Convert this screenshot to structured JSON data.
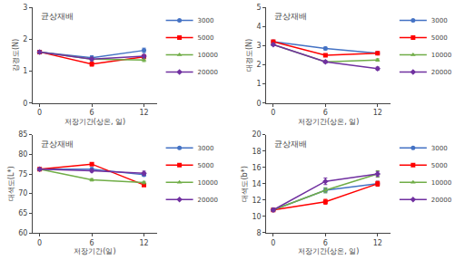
{
  "chart_data": [
    {
      "type": "line",
      "title": "균상재배",
      "xlabel": "저장기간(상온, 일)",
      "ylabel": "강경도(N)",
      "x": [
        0,
        6,
        12
      ],
      "xlim": [
        -0.8,
        13.5
      ],
      "xticks": [
        0,
        6,
        12
      ],
      "ylim": [
        0,
        3
      ],
      "yticks": [
        0,
        1,
        2,
        3
      ],
      "grid": false,
      "legend": "upper right",
      "series": [
        {
          "name": "3000",
          "color": "#4472c4",
          "marker": "circle",
          "values": [
            1.6,
            1.42,
            1.65
          ],
          "errors": [
            0.04,
            0.06,
            0.07
          ]
        },
        {
          "name": "5000",
          "color": "#ff0000",
          "marker": "square",
          "values": [
            1.6,
            1.22,
            1.45
          ],
          "errors": [
            0.04,
            0.06,
            0.05
          ]
        },
        {
          "name": "10000",
          "color": "#70ad47",
          "marker": "triangle-up",
          "values": [
            1.6,
            1.38,
            1.35
          ],
          "errors": [
            0.04,
            0.05,
            0.05
          ]
        },
        {
          "name": "20000",
          "color": "#7030a0",
          "marker": "diamond",
          "values": [
            1.6,
            1.38,
            1.47
          ],
          "errors": [
            0.04,
            0.05,
            0.05
          ]
        }
      ]
    },
    {
      "type": "line",
      "title": "균상재배",
      "xlabel": "저장기간(상온, 일)",
      "ylabel": "대경도(N)",
      "x": [
        0,
        6,
        12
      ],
      "xlim": [
        -0.8,
        13.5
      ],
      "xticks": [
        0,
        6,
        12
      ],
      "ylim": [
        0,
        5
      ],
      "yticks": [
        0,
        1,
        2,
        3,
        4,
        5
      ],
      "grid": false,
      "legend": "upper right",
      "series": [
        {
          "name": "3000",
          "color": "#4472c4",
          "marker": "circle",
          "values": [
            3.2,
            2.85,
            2.6
          ],
          "errors": [
            0.06,
            0.07,
            0.06
          ]
        },
        {
          "name": "5000",
          "color": "#ff0000",
          "marker": "square",
          "values": [
            3.2,
            2.5,
            2.6
          ],
          "errors": [
            0.06,
            0.06,
            0.06
          ]
        },
        {
          "name": "10000",
          "color": "#70ad47",
          "marker": "triangle-up",
          "values": [
            3.05,
            2.15,
            2.25
          ],
          "errors": [
            0.06,
            0.06,
            0.06
          ]
        },
        {
          "name": "20000",
          "color": "#7030a0",
          "marker": "diamond",
          "values": [
            3.05,
            2.15,
            1.8
          ],
          "errors": [
            0.06,
            0.06,
            0.08
          ]
        }
      ]
    },
    {
      "type": "line",
      "title": "균상재배",
      "xlabel": "저장기간(일)",
      "ylabel": "대색도(L*)",
      "x": [
        0,
        6,
        12
      ],
      "xlim": [
        -0.8,
        13.5
      ],
      "xticks": [
        0,
        6,
        12
      ],
      "ylim": [
        60,
        85
      ],
      "yticks": [
        60,
        65,
        70,
        75,
        80,
        85
      ],
      "grid": false,
      "legend": "upper right",
      "series": [
        {
          "name": "3000",
          "color": "#4472c4",
          "marker": "circle",
          "values": [
            76.2,
            76.2,
            74.8
          ],
          "errors": [
            0.3,
            0.4,
            0.3
          ]
        },
        {
          "name": "5000",
          "color": "#ff0000",
          "marker": "square",
          "values": [
            76.2,
            77.5,
            72.2
          ],
          "errors": [
            0.3,
            0.3,
            0.3
          ]
        },
        {
          "name": "10000",
          "color": "#70ad47",
          "marker": "triangle-up",
          "values": [
            76.2,
            73.5,
            72.8
          ],
          "errors": [
            0.3,
            0.3,
            0.3
          ]
        },
        {
          "name": "20000",
          "color": "#7030a0",
          "marker": "diamond",
          "values": [
            76.2,
            75.8,
            75.2
          ],
          "errors": [
            0.3,
            0.3,
            0.5
          ]
        }
      ]
    },
    {
      "type": "line",
      "title": "균상재배",
      "xlabel": "저장기간(상온, 일)",
      "ylabel": "대색도(b*)",
      "x": [
        0,
        6,
        12
      ],
      "xlim": [
        -0.8,
        13.5
      ],
      "xticks": [
        0,
        6,
        12
      ],
      "ylim": [
        8,
        20
      ],
      "yticks": [
        8,
        10,
        12,
        14,
        16,
        18,
        20
      ],
      "grid": false,
      "legend": "upper right",
      "series": [
        {
          "name": "3000",
          "color": "#4472c4",
          "marker": "circle",
          "values": [
            10.8,
            13.2,
            14.0
          ],
          "errors": [
            0.2,
            0.3,
            0.3
          ]
        },
        {
          "name": "5000",
          "color": "#ff0000",
          "marker": "square",
          "values": [
            10.8,
            11.8,
            14.0
          ],
          "errors": [
            0.2,
            0.3,
            0.3
          ]
        },
        {
          "name": "10000",
          "color": "#70ad47",
          "marker": "triangle-up",
          "values": [
            10.8,
            13.2,
            15.2
          ],
          "errors": [
            0.2,
            0.3,
            0.4
          ]
        },
        {
          "name": "20000",
          "color": "#7030a0",
          "marker": "diamond",
          "values": [
            10.8,
            14.3,
            15.2
          ],
          "errors": [
            0.2,
            0.4,
            0.3
          ]
        }
      ]
    }
  ]
}
